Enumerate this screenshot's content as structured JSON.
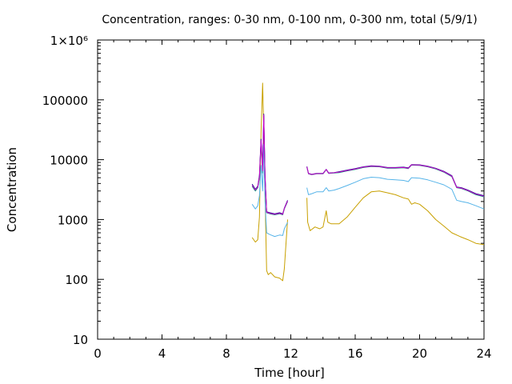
{
  "chart_data": {
    "type": "line",
    "title": "Concentration, ranges: 0-30 nm, 0-100 nm, 0-300 nm, total (5/9/1)",
    "xlabel": "Time [hour]",
    "ylabel": "Concentration",
    "xlim": [
      0,
      24
    ],
    "ylim": [
      10,
      1000000
    ],
    "yscale": "log",
    "grid": false,
    "x_ticks": [
      0,
      4,
      8,
      12,
      16,
      20,
      24
    ],
    "x_tick_labels": [
      "0",
      "4",
      "8",
      "12",
      "16",
      "20",
      "24"
    ],
    "y_ticks": [
      10,
      100,
      1000,
      10000,
      100000,
      1000000
    ],
    "y_tick_labels": [
      "10",
      "100",
      "1000",
      "10000",
      "100000",
      "1×10⁶"
    ],
    "series": [
      {
        "color": "#c8a000",
        "segments": [
          [
            [
              9.6,
              500
            ],
            [
              9.8,
              420
            ],
            [
              9.95,
              460
            ],
            [
              10.05,
              1100
            ],
            [
              10.15,
              28000
            ],
            [
              10.25,
              190000
            ],
            [
              10.32,
              30000
            ],
            [
              10.4,
              2500
            ],
            [
              10.5,
              140
            ],
            [
              10.6,
              120
            ],
            [
              10.75,
              130
            ],
            [
              11.0,
              110
            ],
            [
              11.3,
              105
            ],
            [
              11.5,
              95
            ],
            [
              11.6,
              150
            ],
            [
              11.8,
              1000
            ]
          ],
          [
            [
              13.0,
              2300
            ],
            [
              13.05,
              900
            ],
            [
              13.2,
              650
            ],
            [
              13.5,
              750
            ],
            [
              13.8,
              700
            ],
            [
              14.0,
              750
            ],
            [
              14.2,
              1400
            ],
            [
              14.3,
              900
            ],
            [
              14.5,
              850
            ],
            [
              15.0,
              850
            ],
            [
              15.5,
              1100
            ],
            [
              16.0,
              1600
            ],
            [
              16.5,
              2300
            ],
            [
              17.0,
              2900
            ],
            [
              17.5,
              3000
            ],
            [
              18.0,
              2800
            ],
            [
              18.5,
              2600
            ],
            [
              19.0,
              2300
            ],
            [
              19.3,
              2200
            ],
            [
              19.5,
              1800
            ],
            [
              19.7,
              1900
            ],
            [
              20.0,
              1800
            ],
            [
              20.5,
              1400
            ],
            [
              21.0,
              1000
            ],
            [
              21.5,
              780
            ],
            [
              22.0,
              600
            ],
            [
              22.5,
              520
            ],
            [
              23.0,
              460
            ],
            [
              23.5,
              400
            ],
            [
              24.0,
              380
            ]
          ]
        ]
      },
      {
        "color": "#009e73",
        "segments": [
          [
            [
              9.6,
              3600
            ],
            [
              9.8,
              3000
            ],
            [
              9.95,
              3400
            ],
            [
              10.05,
              5000
            ],
            [
              10.15,
              20000
            ],
            [
              10.25,
              6000
            ],
            [
              10.32,
              55000
            ],
            [
              10.4,
              5000
            ],
            [
              10.5,
              1300
            ],
            [
              10.7,
              1250
            ],
            [
              11.0,
              1200
            ],
            [
              11.3,
              1250
            ],
            [
              11.5,
              1200
            ],
            [
              11.6,
              1500
            ],
            [
              11.8,
              2000
            ]
          ],
          [
            [
              13.0,
              7500
            ],
            [
              13.1,
              5800
            ],
            [
              13.3,
              5600
            ],
            [
              13.6,
              5800
            ],
            [
              14.0,
              5800
            ],
            [
              14.2,
              6800
            ],
            [
              14.35,
              5900
            ],
            [
              14.7,
              6000
            ],
            [
              15.0,
              6100
            ],
            [
              15.5,
              6500
            ],
            [
              16.0,
              6900
            ],
            [
              16.5,
              7400
            ],
            [
              17.0,
              7700
            ],
            [
              17.5,
              7600
            ],
            [
              18.0,
              7200
            ],
            [
              18.5,
              7200
            ],
            [
              19.0,
              7300
            ],
            [
              19.3,
              7100
            ],
            [
              19.5,
              8100
            ],
            [
              20.0,
              8000
            ],
            [
              20.5,
              7600
            ],
            [
              21.0,
              7000
            ],
            [
              21.5,
              6200
            ],
            [
              22.0,
              5200
            ],
            [
              22.3,
              3400
            ],
            [
              22.6,
              3300
            ],
            [
              23.0,
              3000
            ],
            [
              23.5,
              2600
            ],
            [
              24.0,
              2400
            ]
          ]
        ]
      },
      {
        "color": "#56b4e9",
        "segments": [
          [
            [
              9.6,
              1800
            ],
            [
              9.8,
              1500
            ],
            [
              9.95,
              1700
            ],
            [
              10.05,
              2500
            ],
            [
              10.15,
              8000
            ],
            [
              10.25,
              3000
            ],
            [
              10.32,
              18000
            ],
            [
              10.4,
              2000
            ],
            [
              10.5,
              600
            ],
            [
              10.7,
              560
            ],
            [
              11.0,
              520
            ],
            [
              11.3,
              550
            ],
            [
              11.5,
              540
            ],
            [
              11.6,
              700
            ],
            [
              11.8,
              900
            ]
          ],
          [
            [
              13.0,
              3400
            ],
            [
              13.1,
              2600
            ],
            [
              13.3,
              2700
            ],
            [
              13.6,
              2900
            ],
            [
              14.0,
              2900
            ],
            [
              14.2,
              3400
            ],
            [
              14.35,
              3000
            ],
            [
              14.7,
              3100
            ],
            [
              15.0,
              3300
            ],
            [
              15.5,
              3700
            ],
            [
              16.0,
              4200
            ],
            [
              16.5,
              4800
            ],
            [
              17.0,
              5100
            ],
            [
              17.5,
              5000
            ],
            [
              18.0,
              4700
            ],
            [
              18.5,
              4600
            ],
            [
              19.0,
              4500
            ],
            [
              19.3,
              4300
            ],
            [
              19.5,
              5000
            ],
            [
              20.0,
              4900
            ],
            [
              20.5,
              4600
            ],
            [
              21.0,
              4200
            ],
            [
              21.5,
              3800
            ],
            [
              22.0,
              3200
            ],
            [
              22.3,
              2100
            ],
            [
              22.6,
              2000
            ],
            [
              23.0,
              1900
            ],
            [
              23.5,
              1700
            ],
            [
              24.0,
              1500
            ]
          ]
        ]
      },
      {
        "color": "#1c1c8c",
        "segments": [
          [
            [
              9.6,
              3900
            ],
            [
              9.8,
              3200
            ],
            [
              9.95,
              3600
            ],
            [
              10.05,
              5500
            ],
            [
              10.15,
              22000
            ],
            [
              10.25,
              7000
            ],
            [
              10.32,
              58000
            ],
            [
              10.4,
              5500
            ],
            [
              10.5,
              1350
            ],
            [
              10.7,
              1300
            ],
            [
              11.0,
              1250
            ],
            [
              11.3,
              1300
            ],
            [
              11.5,
              1250
            ],
            [
              11.6,
              1550
            ],
            [
              11.8,
              2100
            ]
          ],
          [
            [
              13.0,
              7700
            ],
            [
              13.1,
              5900
            ],
            [
              13.3,
              5700
            ],
            [
              13.6,
              5900
            ],
            [
              14.0,
              5900
            ],
            [
              14.2,
              6900
            ],
            [
              14.35,
              6000
            ],
            [
              14.7,
              6100
            ],
            [
              15.0,
              6300
            ],
            [
              15.5,
              6700
            ],
            [
              16.0,
              7100
            ],
            [
              16.5,
              7600
            ],
            [
              17.0,
              7900
            ],
            [
              17.5,
              7800
            ],
            [
              18.0,
              7400
            ],
            [
              18.5,
              7400
            ],
            [
              19.0,
              7500
            ],
            [
              19.3,
              7300
            ],
            [
              19.5,
              8300
            ],
            [
              20.0,
              8200
            ],
            [
              20.5,
              7800
            ],
            [
              21.0,
              7200
            ],
            [
              21.5,
              6400
            ],
            [
              22.0,
              5400
            ],
            [
              22.3,
              3500
            ],
            [
              22.6,
              3400
            ],
            [
              23.0,
              3100
            ],
            [
              23.5,
              2700
            ],
            [
              24.0,
              2500
            ]
          ]
        ]
      },
      {
        "color": "#cc00cc",
        "segments": [
          [
            [
              9.6,
              3750
            ],
            [
              9.8,
              3100
            ],
            [
              9.95,
              3500
            ],
            [
              10.05,
              5200
            ],
            [
              10.15,
              21000
            ],
            [
              10.25,
              6500
            ],
            [
              10.32,
              56000
            ],
            [
              10.4,
              5200
            ],
            [
              10.5,
              1320
            ],
            [
              10.7,
              1270
            ],
            [
              11.0,
              1220
            ],
            [
              11.3,
              1270
            ],
            [
              11.5,
              1220
            ],
            [
              11.6,
              1520
            ],
            [
              11.8,
              2050
            ]
          ],
          [
            [
              13.0,
              7600
            ],
            [
              13.1,
              5850
            ],
            [
              13.3,
              5650
            ],
            [
              13.6,
              5850
            ],
            [
              14.0,
              5850
            ],
            [
              14.2,
              6850
            ],
            [
              14.35,
              5950
            ],
            [
              14.7,
              6050
            ],
            [
              15.0,
              6200
            ],
            [
              15.5,
              6600
            ],
            [
              16.0,
              7000
            ],
            [
              16.5,
              7500
            ],
            [
              17.0,
              7800
            ],
            [
              17.5,
              7700
            ],
            [
              18.0,
              7300
            ],
            [
              18.5,
              7300
            ],
            [
              19.0,
              7400
            ],
            [
              19.3,
              7200
            ],
            [
              19.5,
              8200
            ],
            [
              20.0,
              8100
            ],
            [
              20.5,
              7700
            ],
            [
              21.0,
              7100
            ],
            [
              21.5,
              6300
            ],
            [
              22.0,
              5300
            ],
            [
              22.3,
              3450
            ],
            [
              22.6,
              3350
            ],
            [
              23.0,
              3050
            ],
            [
              23.5,
              2650
            ],
            [
              24.0,
              2450
            ]
          ]
        ]
      }
    ]
  }
}
